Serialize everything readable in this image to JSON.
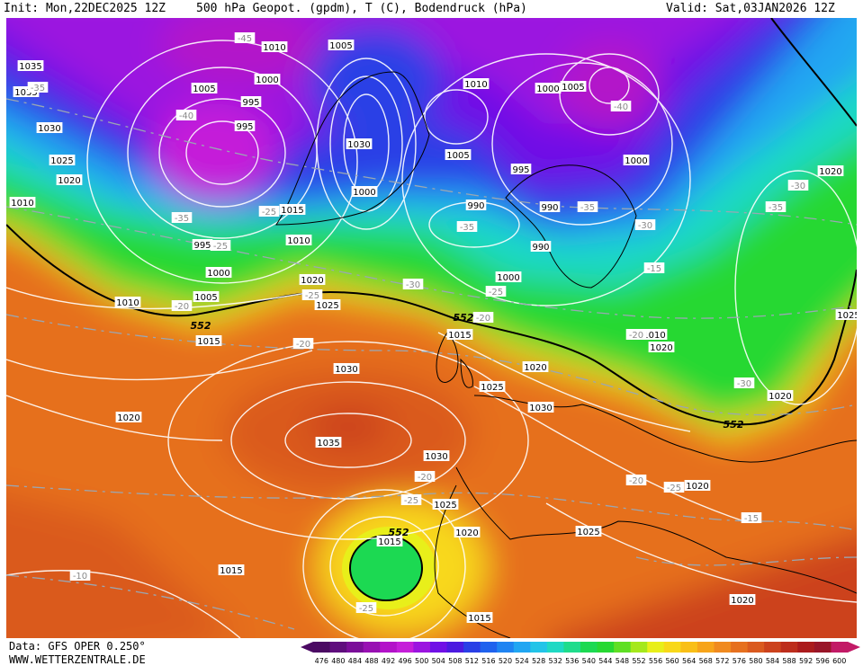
{
  "header": {
    "init": "Init: Mon,22DEC2025 12Z",
    "title": "500 hPa Geopot. (gpdm), T (C), Bodendruck (hPa)",
    "valid": "Valid: Sat,03JAN2026 12Z"
  },
  "footer": {
    "data_source": "Data: GFS OPER 0.250°",
    "website": "WWW.WETTERZENTRALE.DE"
  },
  "colorbar": {
    "labels": [
      "476",
      "480",
      "484",
      "488",
      "492",
      "496",
      "500",
      "504",
      "508",
      "512",
      "516",
      "520",
      "524",
      "528",
      "532",
      "536",
      "540",
      "544",
      "548",
      "552",
      "556",
      "560",
      "564",
      "568",
      "572",
      "576",
      "580",
      "584",
      "588",
      "592",
      "596",
      "600"
    ],
    "colors": [
      "#4b0a63",
      "#5f0d7d",
      "#7a0d99",
      "#9810b3",
      "#b312c9",
      "#c51ed9",
      "#9b14e0",
      "#7010e6",
      "#4c1ae0",
      "#2a3fe6",
      "#1f62ee",
      "#1f84f2",
      "#21a6f2",
      "#22c4e8",
      "#1fd9c4",
      "#1fdc8c",
      "#1cd952",
      "#27d832",
      "#5fdf24",
      "#a5e81c",
      "#e8ef1a",
      "#f8d81a",
      "#f9bf17",
      "#f7a41a",
      "#f08a1f",
      "#e6701f",
      "#da5a1f",
      "#cc421d",
      "#bd2d1c",
      "#ab1b1c",
      "#991528",
      "#c21a66"
    ]
  },
  "map": {
    "pressure_labels": [
      "1035",
      "1005",
      "1010",
      "1005",
      "995",
      "1000",
      "995",
      "1010",
      "1005",
      "1000",
      "1035",
      "1030",
      "1025",
      "1020",
      "1010",
      "1000",
      "1030",
      "1005",
      "990",
      "995",
      "1000",
      "990",
      "1015",
      "1010",
      "995",
      "1000",
      "1005",
      "1010",
      "1020",
      "1025",
      "1015",
      "1000",
      "990",
      "1025",
      "1020",
      "1015",
      "1010",
      "1020",
      "1030",
      "1035",
      "1030",
      "1030",
      "1025",
      "1020",
      "1020",
      "1015",
      "1025",
      "1015",
      "1020",
      "1020",
      "1025",
      "1020",
      "1015",
      "1020"
    ],
    "temperature_labels": [
      "-45",
      "-35",
      "-40",
      "-35",
      "-25",
      "-25",
      "-20",
      "-20",
      "-40",
      "-35",
      "-30",
      "-30",
      "-35",
      "-35",
      "-25",
      "-30",
      "-25",
      "-20",
      "-20",
      "-15",
      "-30",
      "-25",
      "-20",
      "-20",
      "-25",
      "-25",
      "-15",
      "-10"
    ],
    "geopotential_labels": [
      "552",
      "552",
      "552",
      "552"
    ]
  }
}
